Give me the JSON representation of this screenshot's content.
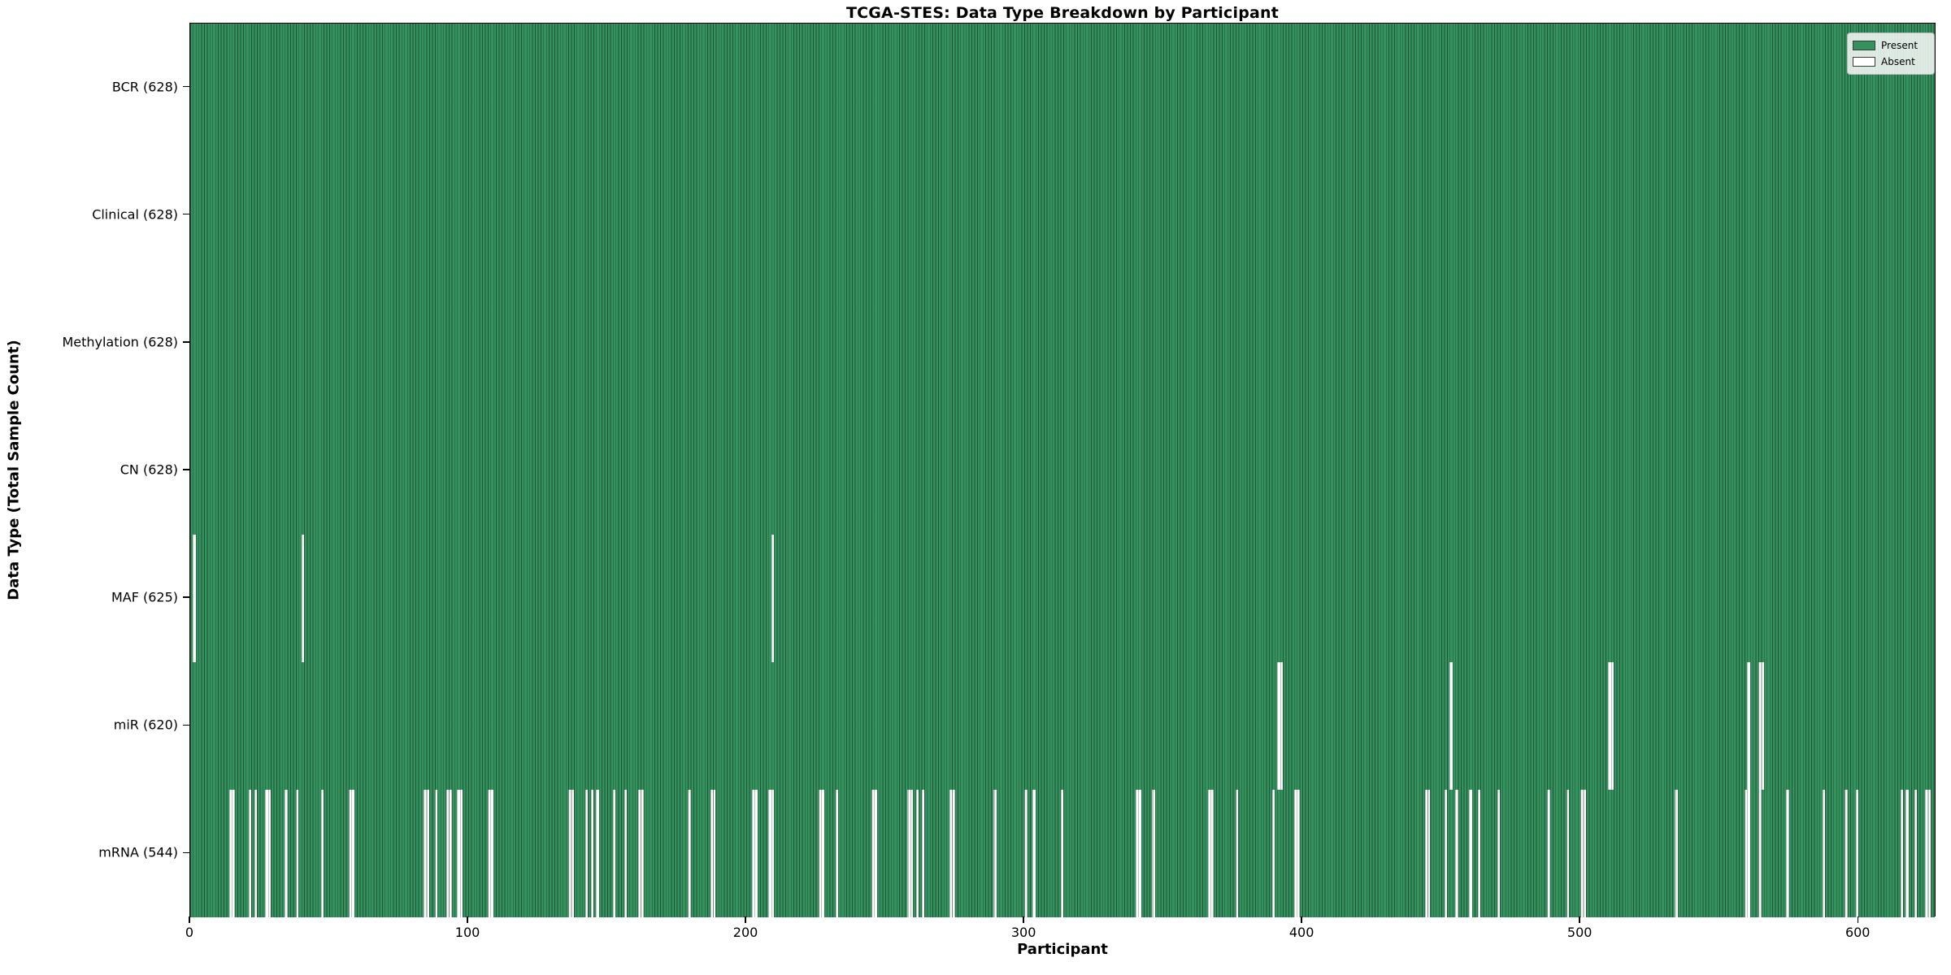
{
  "chart_data": {
    "type": "heatmap",
    "title": "TCGA-STES: Data Type Breakdown by Participant",
    "xlabel": "Participant",
    "ylabel": "Data Type (Total Sample Count)",
    "n_participants": 628,
    "x_ticks": [
      0,
      100,
      200,
      300,
      400,
      500,
      600
    ],
    "grid": false,
    "legend_position": "upper-right",
    "colors": {
      "present": "#35915e",
      "absent": "#ffffff",
      "bar_edge": "rgba(10,35,22,0.55)",
      "row_separator": "rgba(0,0,0,0.85)"
    },
    "legend": [
      {
        "label": "Present",
        "color": "#35915e"
      },
      {
        "label": "Absent",
        "color": "#ffffff"
      }
    ],
    "rows": [
      {
        "label": "BCR (628)",
        "name": "BCR",
        "present_count": 628,
        "absent_participants": []
      },
      {
        "label": "Clinical (628)",
        "name": "Clinical",
        "present_count": 628,
        "absent_participants": []
      },
      {
        "label": "Methylation (628)",
        "name": "Methylation",
        "present_count": 628,
        "absent_participants": []
      },
      {
        "label": "CN (628)",
        "name": "CN",
        "present_count": 628,
        "absent_participants": []
      },
      {
        "label": "MAF (625)",
        "name": "MAF",
        "present_count": 625,
        "absent_participants": [
          1,
          40,
          209
        ]
      },
      {
        "label": "miR (620)",
        "name": "miR",
        "present_count": 620,
        "absent_participants": [
          391,
          392,
          453,
          510,
          511,
          560,
          564,
          565
        ]
      },
      {
        "label": "mRNA (544)",
        "name": "mRNA",
        "present_count": 544,
        "absent_participants": [
          14,
          15,
          21,
          23,
          27,
          28,
          34,
          38,
          47,
          57,
          58,
          84,
          85,
          88,
          92,
          93,
          96,
          97,
          107,
          108,
          136,
          137,
          142,
          144,
          146,
          152,
          156,
          161,
          162,
          179,
          187,
          188,
          202,
          203,
          208,
          209,
          226,
          227,
          232,
          245,
          246,
          258,
          259,
          261,
          263,
          273,
          274,
          289,
          300,
          303,
          313,
          340,
          341,
          346,
          366,
          367,
          376,
          389,
          397,
          398,
          444,
          445,
          451,
          455,
          460,
          463,
          470,
          488,
          495,
          500,
          501,
          534,
          559,
          560,
          564,
          574,
          587,
          595,
          599,
          615,
          617,
          620,
          624,
          625
        ]
      }
    ]
  }
}
